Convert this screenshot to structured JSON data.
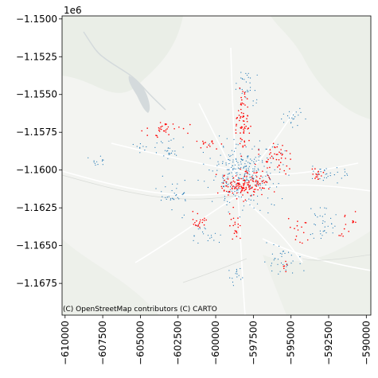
{
  "map": {
    "basemap": "CARTO light",
    "attribution": "(C) OpenStreetMap contributors (C) CARTO",
    "y_offset_label": "1e6",
    "colors": {
      "background": "#f3f4f1",
      "roads": "#ffffff",
      "water": "#d4dadc",
      "points_blue": "#1f77b4",
      "points_red": "#ff0000"
    }
  },
  "chart_data": {
    "type": "scatter",
    "title": "",
    "xlabel": "",
    "ylabel": "",
    "xlim": [
      -610200,
      -589700
    ],
    "ylim": [
      -1169600,
      -1149800
    ],
    "x_ticks": [
      -610000,
      -607500,
      -605000,
      -602500,
      -600000,
      -597500,
      -595000,
      -592500,
      -590000
    ],
    "x_tick_labels": [
      "−610000",
      "−607500",
      "−605000",
      "−602500",
      "−600000",
      "−597500",
      "−595000",
      "−592500",
      "−590000"
    ],
    "y_ticks": [
      -1150000,
      -1152500,
      -1155000,
      -1157500,
      -1160000,
      -1162500,
      -1165000,
      -1167500
    ],
    "y_tick_labels": [
      "−1.1500",
      "−1.1525",
      "−1.1550",
      "−1.1575",
      "−1.1600",
      "−1.1625",
      "−1.1650",
      "−1.1675"
    ],
    "grid": false,
    "series": [
      {
        "color": "#1f77b4",
        "marker_size": 0.6,
        "clusters": [
          {
            "center": [
              -598200,
              -1160200
            ],
            "spread": [
              1900,
              1700
            ],
            "count": 260
          },
          {
            "center": [
              -597900,
              -1154500
            ],
            "spread": [
              600,
              1100
            ],
            "count": 30
          },
          {
            "center": [
              -603600,
              -1158600
            ],
            "spread": [
              1300,
              500
            ],
            "count": 35
          },
          {
            "center": [
              -607800,
              -1159400
            ],
            "spread": [
              600,
              250
            ],
            "count": 12
          },
          {
            "center": [
              -602800,
              -1161800
            ],
            "spread": [
              800,
              900
            ],
            "count": 35
          },
          {
            "center": [
              -592500,
              -1160300
            ],
            "spread": [
              1200,
              500
            ],
            "count": 30
          },
          {
            "center": [
              -593000,
              -1163700
            ],
            "spread": [
              800,
              900
            ],
            "count": 35
          },
          {
            "center": [
              -595800,
              -1166000
            ],
            "spread": [
              1100,
              900
            ],
            "count": 35
          },
          {
            "center": [
              -598600,
              -1167000
            ],
            "spread": [
              500,
              700
            ],
            "count": 15
          },
          {
            "center": [
              -600700,
              -1164300
            ],
            "spread": [
              900,
              500
            ],
            "count": 20
          },
          {
            "center": [
              -594800,
              -1156500
            ],
            "spread": [
              700,
              600
            ],
            "count": 20
          }
        ]
      },
      {
        "color": "#ff0000",
        "marker_size": 0.8,
        "clusters": [
          {
            "center": [
              -598000,
              -1161000
            ],
            "spread": [
              1300,
              700
            ],
            "count": 140
          },
          {
            "center": [
              -598200,
              -1156500
            ],
            "spread": [
              350,
              1700
            ],
            "count": 70
          },
          {
            "center": [
              -596000,
              -1159200
            ],
            "spread": [
              900,
              900
            ],
            "count": 45
          },
          {
            "center": [
              -603500,
              -1157300
            ],
            "spread": [
              1200,
              450
            ],
            "count": 30
          },
          {
            "center": [
              -600500,
              -1158300
            ],
            "spread": [
              700,
              300
            ],
            "count": 15
          },
          {
            "center": [
              -601100,
              -1163400
            ],
            "spread": [
              500,
              500
            ],
            "count": 20
          },
          {
            "center": [
              -594400,
              -1164000
            ],
            "spread": [
              500,
              700
            ],
            "count": 15
          },
          {
            "center": [
              -593300,
              -1160300
            ],
            "spread": [
              400,
              400
            ],
            "count": 15
          },
          {
            "center": [
              -591100,
              -1163700
            ],
            "spread": [
              600,
              700
            ],
            "count": 15
          },
          {
            "center": [
              -598700,
              -1163800
            ],
            "spread": [
              300,
              1000
            ],
            "count": 20
          },
          {
            "center": [
              -595300,
              -1166300
            ],
            "spread": [
              300,
              600
            ],
            "count": 6
          }
        ]
      }
    ]
  }
}
